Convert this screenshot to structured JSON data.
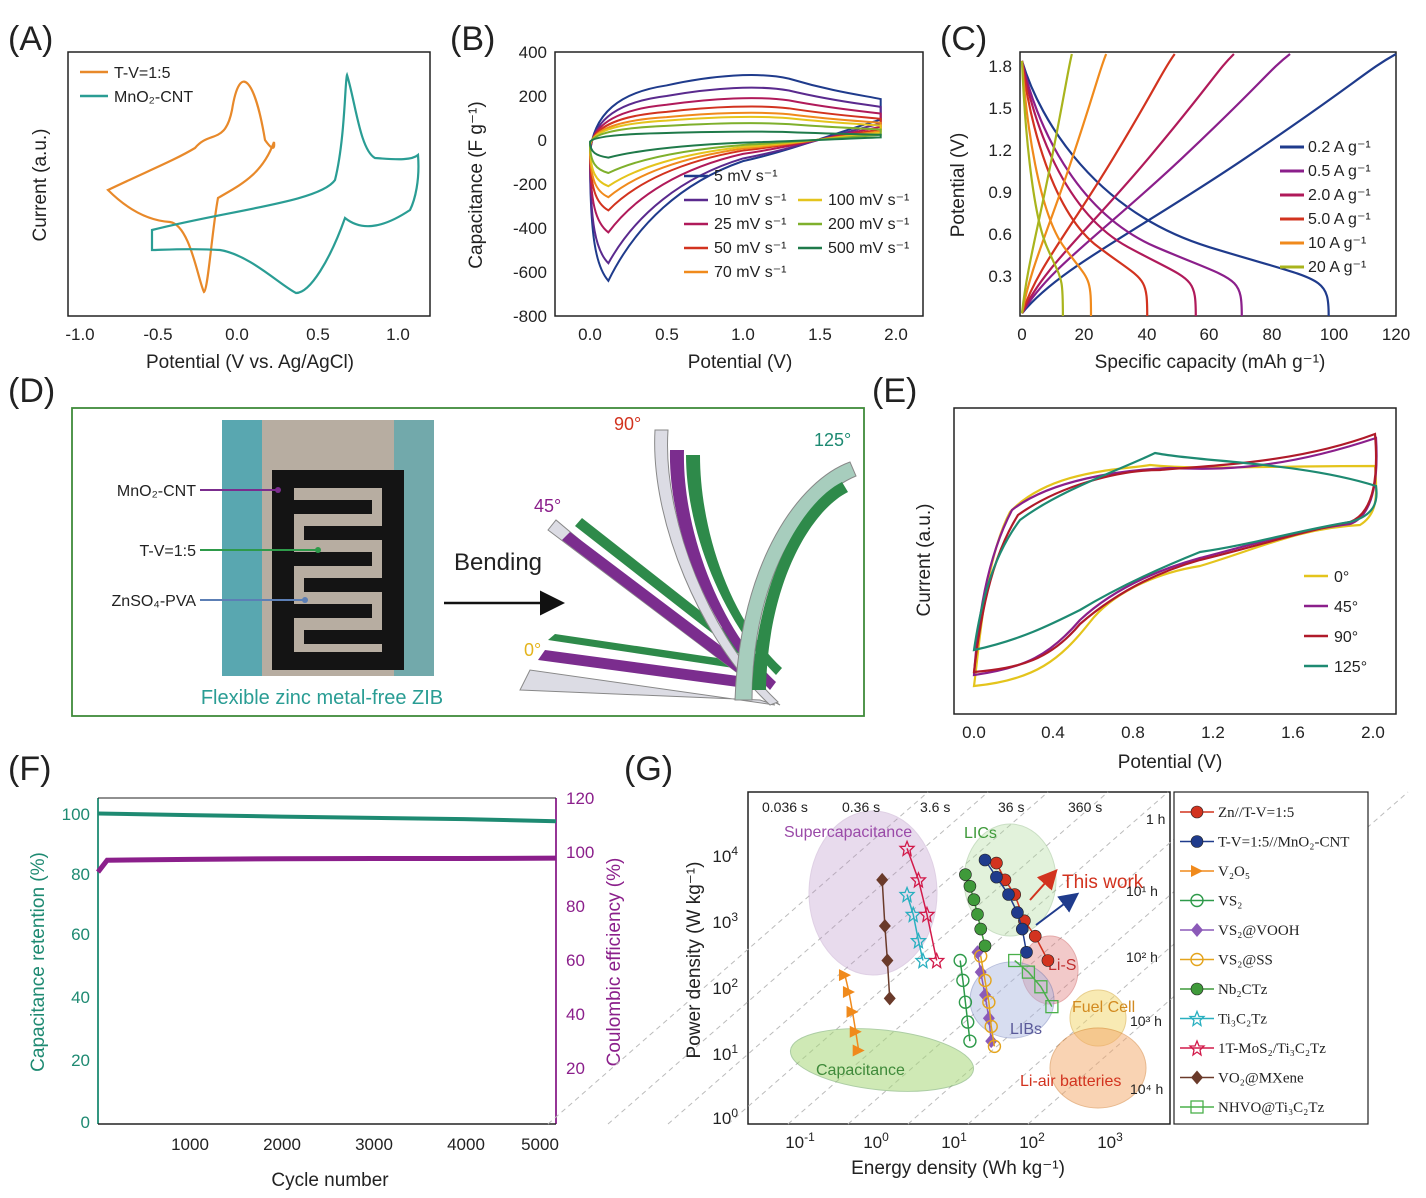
{
  "panels": {
    "A": {
      "label": "(A)",
      "xlabel": "Potential (V vs. Ag/AgCl)",
      "ylabel": "Current (a.u.)",
      "xticks": [
        "-1.0",
        "-0.5",
        "0.0",
        "0.5",
        "1.0"
      ],
      "legend": [
        "T-V=1:5",
        "MnO₂-CNT"
      ]
    },
    "B": {
      "label": "(B)",
      "xlabel": "Potential (V)",
      "ylabel": "Capacitance (F g⁻¹)",
      "xticks": [
        "0.0",
        "0.5",
        "1.0",
        "1.5",
        "2.0"
      ],
      "yticks": [
        "400",
        "200",
        "0",
        "-200",
        "-400",
        "-600",
        "-800"
      ],
      "legend": [
        "5 mV s⁻¹",
        "10 mV s⁻¹",
        "25 mV s⁻¹",
        "50 mV s⁻¹",
        "70 mV s⁻¹",
        "100 mV s⁻¹",
        "200 mV s⁻¹",
        "500 mV s⁻¹"
      ]
    },
    "C": {
      "label": "(C)",
      "xlabel": "Specific capacity (mAh g⁻¹)",
      "ylabel": "Potential (V)",
      "xticks": [
        "0",
        "20",
        "40",
        "60",
        "80",
        "100",
        "120"
      ],
      "yticks": [
        "1.8",
        "1.5",
        "1.2",
        "0.9",
        "0.6",
        "0.3"
      ],
      "legend": [
        "0.2 A g⁻¹",
        "0.5 A g⁻¹",
        "2.0 A g⁻¹",
        "5.0 A g⁻¹",
        "10  A g⁻¹",
        "20  A g⁻¹"
      ]
    },
    "D": {
      "label": "(D)",
      "labels": [
        "MnO₂-CNT",
        "T-V=1:5",
        "ZnSO₄-PVA"
      ],
      "arrow": "Bending",
      "caption": "Flexible zinc metal-free ZIB",
      "angles": [
        "0°",
        "45°",
        "90°",
        "125°"
      ]
    },
    "E": {
      "label": "(E)",
      "xlabel": "Potential (V)",
      "ylabel": "Current (a.u.)",
      "xticks": [
        "0.0",
        "0.4",
        "0.8",
        "1.2",
        "1.6",
        "2.0"
      ],
      "legend": [
        "0°",
        "45°",
        "90°",
        "125°"
      ]
    },
    "F": {
      "label": "(F)",
      "xlabel": "Cycle number",
      "ylabel_left": "Capacitance retention (%)",
      "ylabel_right": "Coulombic efficiency (%)",
      "xticks": [
        "1000",
        "2000",
        "3000",
        "4000",
        "5000"
      ],
      "yticks_left": [
        "100",
        "80",
        "60",
        "40",
        "20",
        "0"
      ],
      "yticks_right": [
        "120",
        "100",
        "80",
        "60",
        "40",
        "20"
      ]
    },
    "G": {
      "label": "(G)",
      "xlabel": "Energy density (Wh kg⁻¹)",
      "ylabel": "Power density (W kg⁻¹)",
      "times_top": [
        "0.036 s",
        "0.36 s",
        "3.6 s",
        "36 s",
        "360 s"
      ],
      "times_right": [
        "1 h",
        "10¹ h",
        "10² h",
        "10³ h",
        "10⁴ h"
      ],
      "regions": [
        "Supercapacitance",
        "LICs",
        "Li-S",
        "Fuel Cell",
        "LIBs",
        "Capacitance",
        "Li-air batteries"
      ],
      "annotation": "This work",
      "legend": [
        "Zn//T-V=1:5",
        "T-V=1:5//MnO₂-CNT",
        "V₂O₅",
        "VS₂",
        "VS₂@VOOH",
        "VS₂@SS",
        "Nb₂CTz",
        "Ti₃C₂Tz",
        "1T-MoS₂/Ti₃C₂Tz",
        "VO₂@MXene",
        "NHVO@Ti₃C₂Tz"
      ]
    }
  },
  "colors": {
    "orange": "#e8892a",
    "teal": "#2a9d94",
    "navy": "#1f3b8c",
    "purple": "#7b2d8e",
    "crimson": "#c0265a",
    "red": "#d2331f",
    "orange2": "#f08a1c",
    "yellow": "#e4c41c",
    "lime": "#7fb02c",
    "dkgreen": "#1f7a4a",
    "cgreen": "#1e8a72",
    "cpurple": "#8b1f8b"
  },
  "chart_data": [
    {
      "panel": "A",
      "type": "line",
      "xlim": [
        -1.0,
        1.2
      ],
      "series": [
        {
          "name": "T-V=1:5",
          "x": [
            -0.8,
            -0.5,
            -0.3,
            -0.18,
            0.05,
            0.22,
            0.25,
            0.1,
            -0.2,
            -0.5,
            -0.78
          ],
          "y": [
            0.55,
            0.62,
            0.72,
            0.55,
            1.0,
            0.75,
            0.55,
            0.45,
            0.12,
            0.47,
            0.55
          ]
        },
        {
          "name": "MnO₂-CNT",
          "x": [
            -0.5,
            0.3,
            0.55,
            0.65,
            0.8,
            1.05,
            1.1,
            0.6,
            0.35,
            0.0,
            -0.5
          ],
          "y": [
            0.46,
            0.52,
            0.6,
            1.0,
            0.7,
            0.64,
            0.78,
            0.48,
            0.12,
            0.35,
            0.38
          ]
        }
      ]
    },
    {
      "panel": "B",
      "type": "line",
      "xlim": [
        -0.2,
        2.2
      ],
      "ylim": [
        -800,
        400
      ],
      "series": [
        {
          "name": "5 mV s⁻¹",
          "peak_max": 310,
          "min": -640
        },
        {
          "name": "10 mV s⁻¹",
          "peak_max": 250,
          "min": -560
        },
        {
          "name": "25 mV s⁻¹",
          "peak_max": 200,
          "min": -420
        },
        {
          "name": "50 mV s⁻¹",
          "peak_max": 160,
          "min": -320
        },
        {
          "name": "70 mV s⁻¹",
          "peak_max": 130,
          "min": -260
        },
        {
          "name": "100 mV s⁻¹",
          "peak_max": 110,
          "min": -210
        },
        {
          "name": "200 mV s⁻¹",
          "peak_max": 80,
          "min": -150
        },
        {
          "name": "500 mV s⁻¹",
          "peak_max": 40,
          "min": -80
        }
      ]
    },
    {
      "panel": "C",
      "type": "line",
      "xlim": [
        0,
        120
      ],
      "ylim": [
        0,
        1.9
      ],
      "series": [
        {
          "name": "0.2 A g⁻¹",
          "capacity_max": 120
        },
        {
          "name": "0.5 A g⁻¹",
          "capacity_max": 86
        },
        {
          "name": "2.0 A g⁻¹",
          "capacity_max": 68
        },
        {
          "name": "5.0 A g⁻¹",
          "capacity_max": 49
        },
        {
          "name": "10  A g⁻¹",
          "capacity_max": 27
        },
        {
          "name": "20  A g⁻¹",
          "capacity_max": 16
        }
      ]
    },
    {
      "panel": "E",
      "type": "line",
      "xlim": [
        -0.1,
        2.0
      ],
      "series": [
        {
          "name": "0°"
        },
        {
          "name": "45°"
        },
        {
          "name": "90°"
        },
        {
          "name": "125°"
        }
      ]
    },
    {
      "panel": "F",
      "type": "scatter",
      "xlim": [
        0,
        5000
      ],
      "series": [
        {
          "name": "Capacitance retention",
          "x": [
            0,
            1000,
            2000,
            3000,
            4000,
            5000
          ],
          "y": [
            100,
            99.5,
            99,
            98.6,
            98.2,
            97.5
          ]
        },
        {
          "name": "Coulombic efficiency",
          "x": [
            0,
            100,
            1000,
            2000,
            3000,
            4000,
            5000
          ],
          "y": [
            95,
            99,
            99.3,
            99.5,
            99.6,
            99.6,
            99.7
          ]
        }
      ]
    },
    {
      "panel": "G",
      "type": "scatter",
      "xscale": "log",
      "yscale": "log",
      "series": [
        {
          "name": "Zn//T-V=1:5",
          "x": [
            35,
            45,
            60,
            80,
            110,
            160
          ],
          "y": [
            9000,
            5000,
            3000,
            1200,
            700,
            300
          ]
        },
        {
          "name": "T-V=1:5//MnO₂-CNT",
          "x": [
            25,
            35,
            50,
            65,
            75,
            85
          ],
          "y": [
            10000,
            5500,
            3000,
            1600,
            900,
            400
          ]
        },
        {
          "name": "V₂O₅",
          "x": [
            0.4,
            0.45,
            0.5,
            0.55,
            0.6
          ],
          "y": [
            180,
            100,
            50,
            25,
            13
          ]
        },
        {
          "name": "VS₂",
          "x": [
            12,
            13,
            14,
            15,
            16
          ],
          "y": [
            300,
            150,
            70,
            35,
            18
          ]
        },
        {
          "name": "VS₂@VOOH",
          "x": [
            20,
            22,
            25,
            28,
            30
          ],
          "y": [
            400,
            200,
            90,
            40,
            18
          ]
        },
        {
          "name": "VS₂@SS",
          "x": [
            22,
            25,
            28,
            30,
            33
          ],
          "y": [
            350,
            150,
            70,
            30,
            15
          ]
        },
        {
          "name": "Nb₂CTz",
          "x": [
            14,
            16,
            18,
            20,
            22,
            25
          ],
          "y": [
            6000,
            4000,
            2500,
            1500,
            900,
            500
          ]
        },
        {
          "name": "Ti₃C₂Tz",
          "x": [
            2.5,
            3,
            3.5,
            4
          ],
          "y": [
            3000,
            1500,
            600,
            300
          ]
        },
        {
          "name": "1T-MoS₂/Ti₃C₂Tz",
          "x": [
            2.5,
            3.5,
            4.5,
            6
          ],
          "y": [
            15000,
            5000,
            1500,
            300
          ]
        },
        {
          "name": "VO₂@MXene",
          "x": [
            1.2,
            1.3,
            1.4,
            1.5
          ],
          "y": [
            5000,
            1000,
            300,
            80
          ]
        },
        {
          "name": "NHVO@Ti₃C₂Tz",
          "x": [
            60,
            90,
            130,
            180
          ],
          "y": [
            300,
            200,
            120,
            60
          ]
        }
      ]
    }
  ]
}
